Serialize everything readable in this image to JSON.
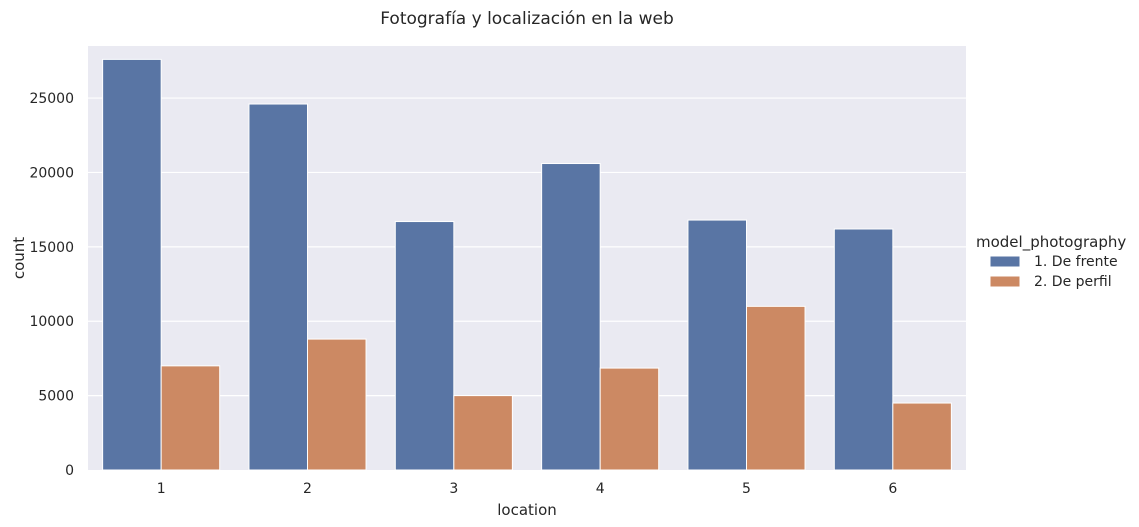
{
  "chart_data": {
    "type": "bar",
    "title": "Fotografía y localización en la web",
    "xlabel": "location",
    "ylabel": "count",
    "categories": [
      "1",
      "2",
      "3",
      "4",
      "5",
      "6"
    ],
    "series": [
      {
        "name": "1. De frente",
        "color": "#5975a4",
        "values": [
          27600,
          24600,
          16700,
          20600,
          16800,
          16200
        ]
      },
      {
        "name": "2. De perfil",
        "color": "#cc8963",
        "values": [
          7000,
          8800,
          5000,
          6850,
          11000,
          4500
        ]
      }
    ],
    "ylim": [
      0,
      28500
    ],
    "yticks": [
      "0",
      "5000",
      "10000",
      "15000",
      "20000",
      "25000"
    ],
    "grid": true,
    "legend": {
      "title": "model_photography",
      "position": "right"
    },
    "colors": {
      "plot_background": "#eaeaf2",
      "grid": "#ffffff"
    }
  }
}
